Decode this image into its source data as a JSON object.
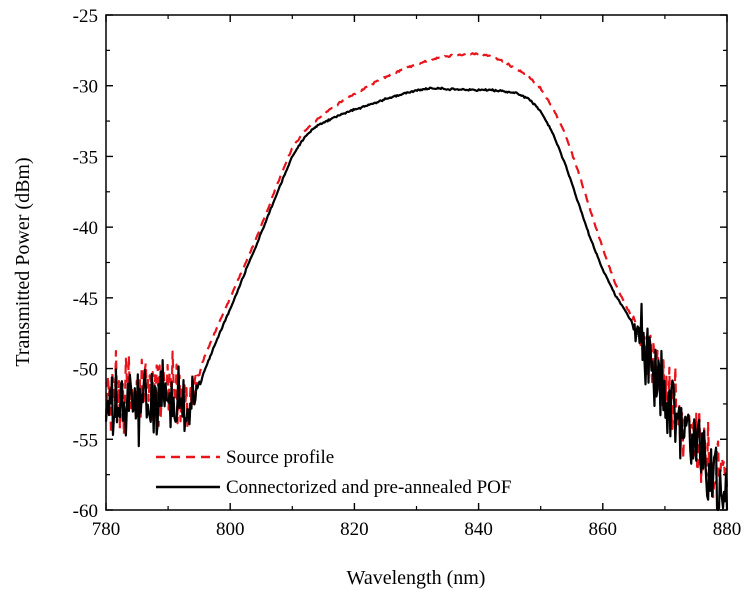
{
  "chart_data": {
    "type": "line",
    "xlabel": "Wavelength (nm)",
    "ylabel": "Transmitted Power (dBm)",
    "xlim": [
      780,
      880
    ],
    "ylim": [
      -60,
      -25
    ],
    "xticks": [
      780,
      800,
      820,
      840,
      860,
      880
    ],
    "yticks": [
      -60,
      -55,
      -50,
      -45,
      -40,
      -35,
      -30,
      -25
    ],
    "xtick_labels": [
      "780",
      "800",
      "820",
      "840",
      "860",
      "880"
    ],
    "ytick_labels": [
      "-60",
      "-55",
      "-50",
      "-45",
      "-40",
      "-35",
      "-30",
      "-25"
    ],
    "grid": false,
    "legend_position": "bottom-left",
    "series": [
      {
        "name": "Source profile",
        "color": "#e8141c",
        "dash": "dashed",
        "noise": [
          {
            "x_start": 780,
            "x_end": 794,
            "noise": 3.6
          },
          {
            "x_start": 866,
            "x_end": 880,
            "noise": 3.2
          }
        ],
        "points": [
          [
            780,
            -52.0
          ],
          [
            782,
            -51.5
          ],
          [
            784,
            -51.8
          ],
          [
            786,
            -51.6
          ],
          [
            788,
            -51.5
          ],
          [
            790,
            -51.8
          ],
          [
            792,
            -51.7
          ],
          [
            794,
            -51.5
          ],
          [
            796,
            -49.0
          ],
          [
            798,
            -47.0
          ],
          [
            800,
            -45.0
          ],
          [
            802,
            -43.0
          ],
          [
            804,
            -41.0
          ],
          [
            806,
            -38.8
          ],
          [
            808,
            -36.5
          ],
          [
            810,
            -34.4
          ],
          [
            812,
            -33.2
          ],
          [
            814,
            -32.4
          ],
          [
            816,
            -31.7
          ],
          [
            818,
            -31.1
          ],
          [
            820,
            -30.6
          ],
          [
            822,
            -30.1
          ],
          [
            824,
            -29.6
          ],
          [
            826,
            -29.2
          ],
          [
            828,
            -28.8
          ],
          [
            830,
            -28.5
          ],
          [
            832,
            -28.2
          ],
          [
            834,
            -28.0
          ],
          [
            836,
            -27.85
          ],
          [
            838,
            -27.75
          ],
          [
            840,
            -27.75
          ],
          [
            842,
            -27.9
          ],
          [
            844,
            -28.3
          ],
          [
            846,
            -28.8
          ],
          [
            848,
            -29.3
          ],
          [
            850,
            -30.2
          ],
          [
            852,
            -31.6
          ],
          [
            854,
            -33.5
          ],
          [
            856,
            -36.0
          ],
          [
            858,
            -38.8
          ],
          [
            860,
            -41.5
          ],
          [
            862,
            -44.0
          ],
          [
            864,
            -45.8
          ],
          [
            866,
            -47.5
          ],
          [
            868,
            -49.5
          ],
          [
            870,
            -51.5
          ],
          [
            872,
            -53.3
          ],
          [
            874,
            -54.8
          ],
          [
            876,
            -56.0
          ],
          [
            878,
            -57.0
          ],
          [
            880,
            -57.5
          ]
        ]
      },
      {
        "name": "Connectorized and pre-annealed POF",
        "color": "#000000",
        "dash": "solid",
        "noise": [
          {
            "x_start": 780,
            "x_end": 794,
            "noise": 3.0
          },
          {
            "x_start": 866,
            "x_end": 880,
            "noise": 3.2
          }
        ],
        "points": [
          [
            780,
            -53.0
          ],
          [
            782,
            -52.8
          ],
          [
            784,
            -52.6
          ],
          [
            786,
            -52.5
          ],
          [
            788,
            -52.4
          ],
          [
            790,
            -52.3
          ],
          [
            792,
            -52.2
          ],
          [
            794,
            -52.4
          ],
          [
            796,
            -50.0
          ],
          [
            798,
            -47.8
          ],
          [
            800,
            -45.8
          ],
          [
            802,
            -43.6
          ],
          [
            804,
            -41.5
          ],
          [
            806,
            -39.3
          ],
          [
            808,
            -37.1
          ],
          [
            810,
            -35.0
          ],
          [
            812,
            -33.6
          ],
          [
            814,
            -32.8
          ],
          [
            816,
            -32.4
          ],
          [
            818,
            -32.0
          ],
          [
            820,
            -31.7
          ],
          [
            822,
            -31.4
          ],
          [
            824,
            -31.1
          ],
          [
            826,
            -30.8
          ],
          [
            828,
            -30.55
          ],
          [
            830,
            -30.35
          ],
          [
            832,
            -30.2
          ],
          [
            834,
            -30.2
          ],
          [
            836,
            -30.25
          ],
          [
            838,
            -30.3
          ],
          [
            840,
            -30.3
          ],
          [
            842,
            -30.3
          ],
          [
            844,
            -30.4
          ],
          [
            846,
            -30.5
          ],
          [
            848,
            -30.9
          ],
          [
            850,
            -31.8
          ],
          [
            852,
            -33.4
          ],
          [
            854,
            -35.6
          ],
          [
            856,
            -38.2
          ],
          [
            858,
            -40.8
          ],
          [
            860,
            -43.0
          ],
          [
            862,
            -44.8
          ],
          [
            864,
            -46.2
          ],
          [
            866,
            -47.8
          ],
          [
            868,
            -49.8
          ],
          [
            870,
            -51.8
          ],
          [
            872,
            -53.6
          ],
          [
            874,
            -55.2
          ],
          [
            876,
            -56.6
          ],
          [
            878,
            -57.8
          ],
          [
            880,
            -58.8
          ]
        ]
      }
    ]
  }
}
